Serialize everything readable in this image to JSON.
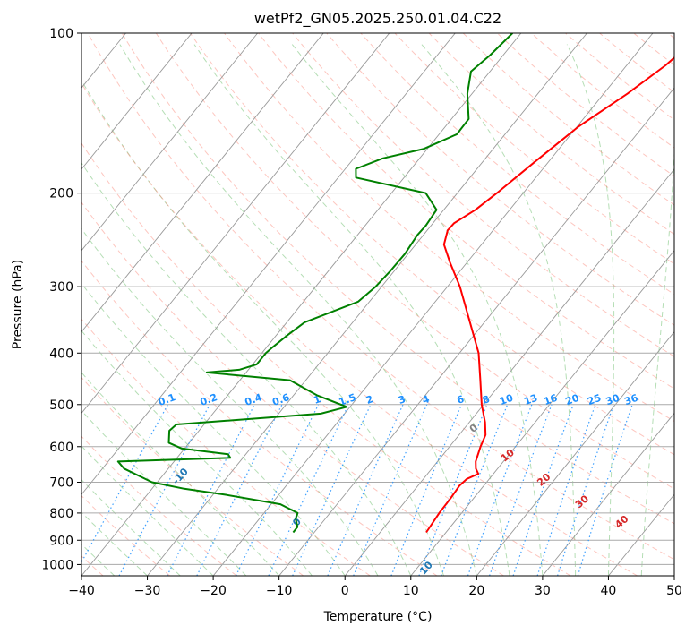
{
  "chart_data": {
    "type": "line",
    "subtype": "skew-t log-p diagram",
    "title": "wetPf2_GN05.2025.250.01.04.C22",
    "xlabel": "Temperature (°C)",
    "ylabel": "Pressure (hPa)",
    "xlim": [
      -40,
      50
    ],
    "ylim": [
      1050,
      100
    ],
    "y_scale": "log",
    "x_ticks": [
      -40,
      -30,
      -20,
      -10,
      0,
      10,
      20,
      30,
      40,
      50
    ],
    "y_ticks": [
      100,
      200,
      300,
      400,
      500,
      600,
      700,
      800,
      900,
      1000
    ],
    "grid": true,
    "series": [
      {
        "role": "temperature",
        "color": "#ff0000",
        "points": [
          [
            870,
            7.0
          ],
          [
            800,
            6.6
          ],
          [
            750,
            6.5
          ],
          [
            710,
            6.3
          ],
          [
            690,
            6.6
          ],
          [
            675,
            7.7
          ],
          [
            660,
            6.7
          ],
          [
            640,
            5.8
          ],
          [
            600,
            4.7
          ],
          [
            570,
            4.0
          ],
          [
            540,
            2.4
          ],
          [
            500,
            -0.3
          ],
          [
            450,
            -3.5
          ],
          [
            400,
            -7.1
          ],
          [
            350,
            -12.2
          ],
          [
            300,
            -18.1
          ],
          [
            270,
            -22.6
          ],
          [
            250,
            -25.7
          ],
          [
            235,
            -26.9
          ],
          [
            228,
            -26.8
          ],
          [
            215,
            -25.2
          ],
          [
            200,
            -24.0
          ],
          [
            175,
            -22.1
          ],
          [
            150,
            -19.8
          ],
          [
            130,
            -16.4
          ],
          [
            115,
            -14.1
          ],
          [
            100,
            -12.5
          ]
        ]
      },
      {
        "role": "dewpoint",
        "color": "#008000",
        "points": [
          [
            870,
            -13.2
          ],
          [
            850,
            -13.2
          ],
          [
            820,
            -14.5
          ],
          [
            800,
            -14.9
          ],
          [
            770,
            -18.6
          ],
          [
            740,
            -27.8
          ],
          [
            720,
            -35.1
          ],
          [
            700,
            -40.8
          ],
          [
            660,
            -46.7
          ],
          [
            640,
            -48.5
          ],
          [
            630,
            -31.9
          ],
          [
            620,
            -32.7
          ],
          [
            605,
            -40.4
          ],
          [
            590,
            -43.1
          ],
          [
            560,
            -44.5
          ],
          [
            545,
            -44.2
          ],
          [
            520,
            -23.6
          ],
          [
            505,
            -20.5
          ],
          [
            480,
            -26.5
          ],
          [
            450,
            -32.4
          ],
          [
            435,
            -46.0
          ],
          [
            430,
            -41.4
          ],
          [
            420,
            -39.4
          ],
          [
            400,
            -39.4
          ],
          [
            390,
            -39.1
          ],
          [
            370,
            -38.3
          ],
          [
            350,
            -37.3
          ],
          [
            320,
            -31.7
          ],
          [
            300,
            -30.9
          ],
          [
            280,
            -30.6
          ],
          [
            260,
            -30.5
          ],
          [
            240,
            -30.9
          ],
          [
            230,
            -30.8
          ],
          [
            215,
            -31.1
          ],
          [
            200,
            -34.8
          ],
          [
            187,
            -47.3
          ],
          [
            180,
            -48.4
          ],
          [
            172,
            -45.6
          ],
          [
            165,
            -40.5
          ],
          [
            155,
            -37.3
          ],
          [
            145,
            -37.4
          ],
          [
            130,
            -40.7
          ],
          [
            118,
            -42.9
          ],
          [
            110,
            -42.0
          ],
          [
            100,
            -41.3
          ]
        ]
      }
    ],
    "dry_adiabats_celsius": [
      -100,
      -90,
      -80,
      -70,
      -60,
      -50,
      -40,
      -30,
      -20,
      -10,
      0,
      10,
      20,
      30,
      40
    ],
    "mixing_ratio_lines_gkg": [
      0.1,
      0.2,
      0.4,
      0.6,
      1,
      1.5,
      2,
      3,
      4,
      6,
      8,
      10,
      13,
      16,
      20,
      25,
      30,
      36
    ],
    "isotherm_color": "#999999",
    "dry_adiabat_color": "#fa8072",
    "dry_adiabat_label_color": "#1f77b4",
    "moist_adiabat_color": "#2ca02c",
    "mixing_ratio_color": "#1e90ff",
    "moist_label_color": "#d62728"
  }
}
